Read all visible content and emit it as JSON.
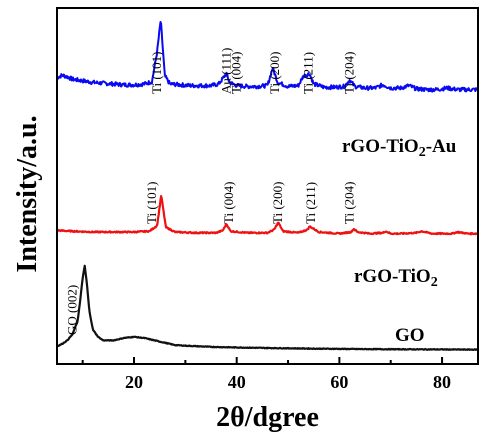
{
  "chart_data": {
    "type": "line",
    "xlabel": "2θ/dgree",
    "ylabel": "Intensity/a.u.",
    "xlim": [
      5,
      87
    ],
    "x_ticks": [
      "20",
      "40",
      "60",
      "80"
    ],
    "y_ticks": "none",
    "grid": false,
    "series": [
      {
        "name": "rGO-TiO2-Au",
        "color": "#0a0af0",
        "label_main": "rGO-TiO",
        "label_sub": "2",
        "label_tail": "-Au",
        "x": [
          5,
          6,
          7,
          8,
          10,
          12,
          14,
          16,
          18,
          20,
          22,
          23.5,
          24.5,
          25.2,
          26,
          27,
          29,
          31,
          33,
          35,
          36.5,
          37.2,
          38,
          38.6,
          40,
          42,
          44,
          46,
          47,
          48,
          50,
          52,
          53,
          54.2,
          55,
          57,
          59,
          61,
          62,
          63,
          65,
          67,
          68.5,
          70,
          72,
          73.5,
          75,
          77,
          79,
          81,
          83,
          85,
          87
        ],
        "y": [
          28,
          31,
          29,
          26,
          24,
          22,
          21,
          20,
          19,
          19,
          20,
          23,
          60,
          100,
          30,
          20,
          19,
          18,
          18,
          18,
          20,
          26,
          33,
          22,
          18,
          17,
          17,
          18,
          40,
          22,
          17,
          18,
          30,
          33,
          20,
          16,
          16,
          17,
          25,
          17,
          15,
          15,
          19,
          15,
          15,
          18,
          14,
          13,
          13,
          15,
          13,
          13,
          13
        ]
      },
      {
        "name": "rGO-TiO2",
        "color": "#ee1111",
        "label_main": "rGO-TiO",
        "label_sub": "2",
        "label_tail": "",
        "x": [
          5,
          8,
          12,
          16,
          20,
          23,
          24.5,
          25.3,
          26.2,
          28,
          32,
          36,
          37.3,
          38,
          38.8,
          42,
          46,
          47.3,
          48.1,
          49,
          52,
          53.8,
          54.2,
          55,
          56,
          60,
          62.3,
          62.8,
          63.5,
          66,
          68.5,
          69,
          70,
          72,
          75,
          76,
          78,
          82,
          83,
          85,
          87
        ],
        "y": [
          12,
          11,
          10,
          10,
          10,
          11,
          18,
          56,
          16,
          10,
          9,
          9,
          12,
          20,
          11,
          9,
          9,
          13,
          22,
          11,
          9,
          13,
          17,
          14,
          10,
          8,
          10,
          14,
          10,
          8,
          9,
          11,
          8,
          8,
          9,
          11,
          8,
          8,
          10,
          8,
          8
        ]
      },
      {
        "name": "GO",
        "color": "#111111",
        "label_main": "GO",
        "label_sub": "",
        "label_tail": "",
        "x": [
          5,
          6,
          7,
          8,
          9,
          9.5,
          10,
          10.4,
          10.8,
          11.3,
          12,
          13,
          14,
          16,
          18,
          20,
          22,
          24,
          26,
          28,
          30,
          35,
          40,
          45,
          50,
          55,
          60,
          65,
          70,
          75,
          80,
          85,
          87
        ],
        "y": [
          4,
          6,
          9,
          14,
          25,
          42,
          62,
          72,
          58,
          34,
          18,
          12,
          9,
          9,
          11,
          12,
          11,
          9,
          7,
          5,
          4.5,
          3.5,
          3,
          2.6,
          2.3,
          2,
          1.8,
          1.6,
          1.5,
          1.4,
          1.3,
          1.2,
          1.2
        ]
      }
    ],
    "annotations": [
      {
        "text": "Ti (101)",
        "x": 24.5,
        "series": 0
      },
      {
        "text": "Au (111)",
        "x": 38.0,
        "series": 0
      },
      {
        "text": "Ti (004)",
        "x": 40.0,
        "series": 0
      },
      {
        "text": "Ti (200)",
        "x": 47.5,
        "series": 0
      },
      {
        "text": "Ti (211)",
        "x": 54.0,
        "series": 0
      },
      {
        "text": "Ti (204)",
        "x": 62.0,
        "series": 0
      },
      {
        "text": "Ti (101)",
        "x": 23.5,
        "series": 1
      },
      {
        "text": "Ti (004)",
        "x": 38.5,
        "series": 1
      },
      {
        "text": "Ti (200)",
        "x": 48.0,
        "series": 1
      },
      {
        "text": "Ti (211)",
        "x": 54.5,
        "series": 1
      },
      {
        "text": "Ti (204)",
        "x": 62.0,
        "series": 1
      },
      {
        "text": "GO (002)",
        "x": 8.0,
        "series": 2
      }
    ]
  }
}
